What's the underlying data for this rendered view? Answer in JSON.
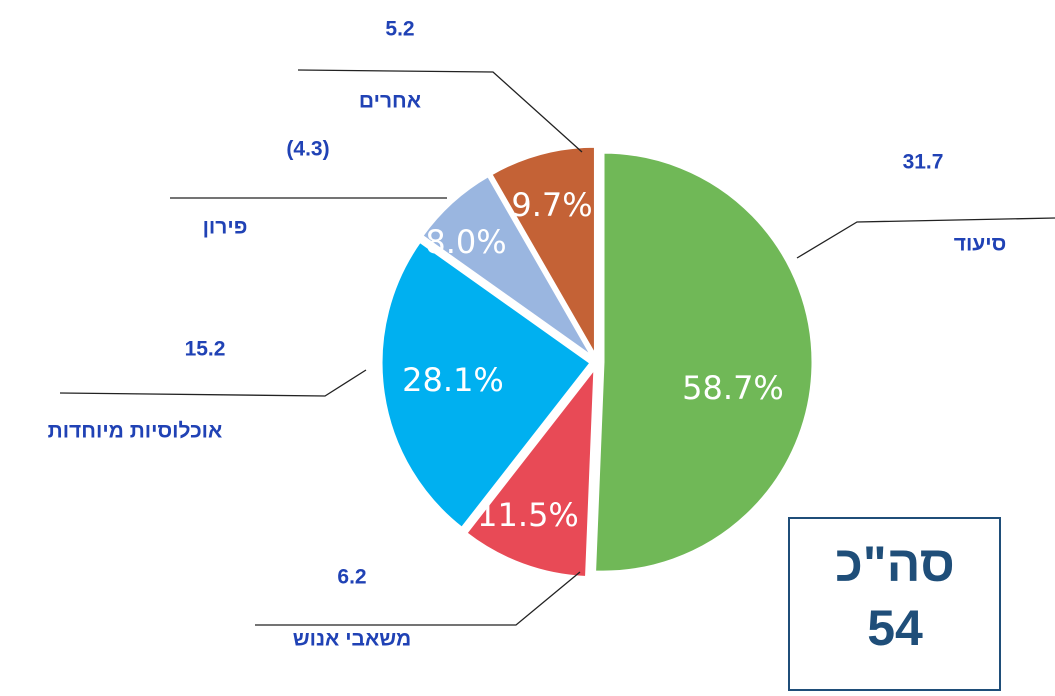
{
  "chart_data": {
    "type": "pie",
    "categories": [
      "סיעוד",
      "משאבי אנוש",
      "אוכלוסיות מיוחדות",
      "פירון",
      "אחרים"
    ],
    "values": [
      31.7,
      6.2,
      15.2,
      4.3,
      5.2
    ],
    "value_labels": [
      "31.7",
      "6.2",
      "15.2",
      "(4.3)",
      "5.2"
    ],
    "percentages": [
      58.7,
      11.5,
      28.1,
      8.0,
      9.7
    ],
    "percentage_labels": [
      "58.7%",
      "11.5%",
      "28.1%",
      "8.0%",
      "9.7%"
    ],
    "colors": [
      "#70b857",
      "#e84a56",
      "#00b0f0",
      "#9ab6e0",
      "#c46236"
    ],
    "total_label": "סה\"כ",
    "total": 54
  }
}
